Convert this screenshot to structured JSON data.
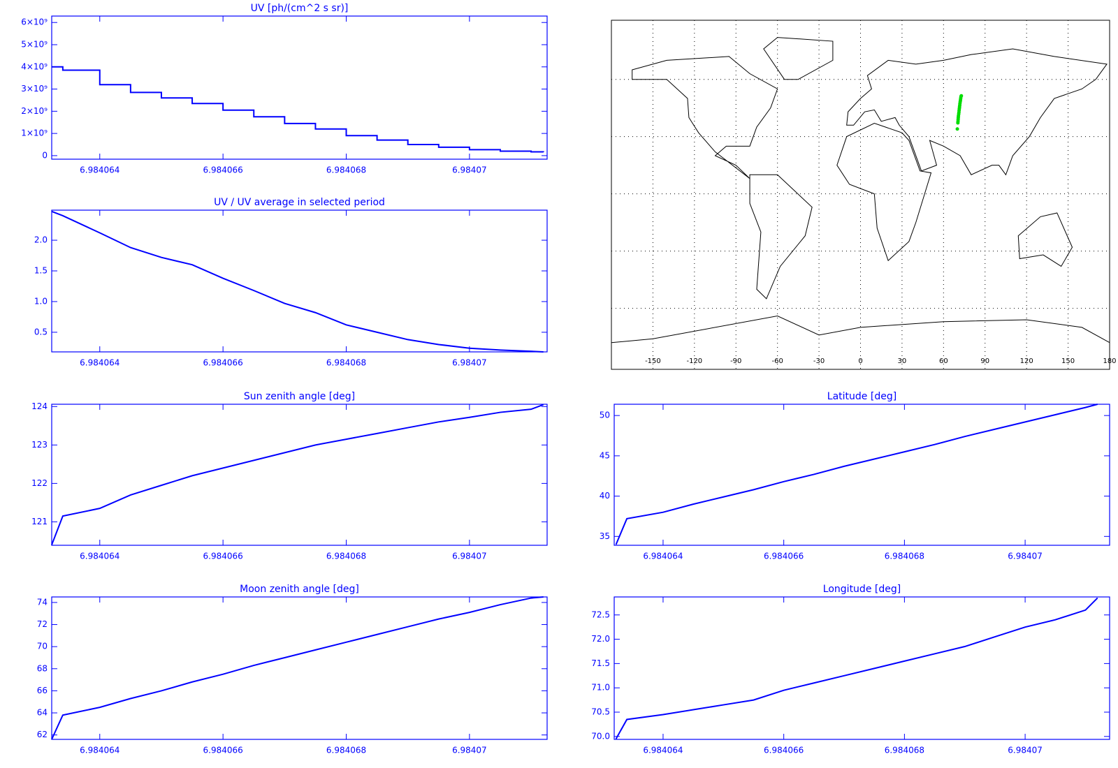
{
  "chart_data": [
    {
      "type": "line",
      "step": true,
      "title": "UV [ph/(cm^2 s sr)]",
      "color": "#0000ff",
      "x": [
        6.98406322,
        6.9840634,
        6.984064,
        6.9840645,
        6.984065,
        6.9840655,
        6.984066,
        6.9840665,
        6.984067,
        6.9840675,
        6.984068,
        6.9840685,
        6.984069,
        6.9840695,
        6.98407,
        6.9840705,
        6.984071,
        6.9840712
      ],
      "values": [
        4000000000,
        3850000000,
        3200000000,
        2850000000,
        2600000000,
        2350000000,
        2050000000,
        1750000000,
        1450000000,
        1200000000,
        900000000,
        700000000,
        500000000,
        380000000,
        270000000,
        200000000,
        170000000,
        160000000
      ],
      "xlim": [
        6.98406322,
        6.98407126
      ],
      "ylim": [
        -160000000,
        6290000000
      ],
      "xticks": [
        6.984064,
        6.984066,
        6.984068,
        6.98407
      ],
      "yticks": [
        0,
        {
          "value": 1000000000,
          "label": "1×10⁹"
        },
        {
          "value": 2000000000,
          "label": "2×10⁹"
        },
        {
          "value": 3000000000,
          "label": "3×10⁹"
        },
        {
          "value": 4000000000,
          "label": "4×10⁹"
        },
        {
          "value": 5000000000,
          "label": "5×10⁹"
        },
        {
          "value": 6000000000,
          "label": "6×10⁹"
        }
      ]
    },
    {
      "type": "line",
      "title": "UV / UV average in selected period",
      "color": "#0000ff",
      "x": [
        6.98406322,
        6.9840634,
        6.984064,
        6.9840645,
        6.984065,
        6.9840655,
        6.984066,
        6.9840665,
        6.984067,
        6.9840675,
        6.984068,
        6.9840685,
        6.984069,
        6.9840695,
        6.98407,
        6.9840705,
        6.984071,
        6.9840712
      ],
      "values": [
        2.47,
        2.4,
        2.12,
        1.88,
        1.72,
        1.6,
        1.38,
        1.18,
        0.97,
        0.82,
        0.62,
        0.5,
        0.38,
        0.3,
        0.24,
        0.21,
        0.19,
        0.18
      ],
      "xlim": [
        6.98406322,
        6.98407126
      ],
      "ylim": [
        0.18,
        2.49
      ],
      "xticks": [
        6.984064,
        6.984066,
        6.984068,
        6.98407
      ],
      "yticks": [
        0.5,
        {
          "value": 1,
          "label": "1.0"
        },
        1.5,
        {
          "value": 2,
          "label": "2.0"
        }
      ]
    },
    {
      "type": "map",
      "xlim": [
        -180,
        180
      ],
      "ylim": [
        -92,
        91
      ],
      "xticks": [
        -150,
        -120,
        -90,
        -60,
        -30,
        0,
        30,
        60,
        90,
        120,
        150,
        180
      ],
      "yticks": [
        -60,
        -30,
        0,
        30,
        60
      ],
      "grid": "dotted",
      "track_color": "#00dd00"
    },
    {
      "type": "line",
      "title": "Sun zenith angle [deg]",
      "color": "#0000ff",
      "x": [
        6.98406322,
        6.9840634,
        6.984064,
        6.9840645,
        6.984065,
        6.9840655,
        6.984066,
        6.9840665,
        6.984067,
        6.9840675,
        6.984068,
        6.9840685,
        6.984069,
        6.9840695,
        6.98407,
        6.9840705,
        6.984071,
        6.9840712
      ],
      "values": [
        120.4,
        121.15,
        121.35,
        121.7,
        121.95,
        122.2,
        122.4,
        122.6,
        122.8,
        123.0,
        123.15,
        123.3,
        123.45,
        123.6,
        123.72,
        123.85,
        123.93,
        124.05
      ],
      "xlim": [
        6.98406322,
        6.98407126
      ],
      "ylim": [
        120.39,
        124.06
      ],
      "xticks": [
        6.984064,
        6.984066,
        6.984068,
        6.98407
      ],
      "yticks": [
        121,
        122,
        123,
        124
      ]
    },
    {
      "type": "line",
      "title": "Latitude [deg]",
      "color": "#0000ff",
      "x": [
        6.98406322,
        6.9840634,
        6.984064,
        6.9840645,
        6.984065,
        6.9840655,
        6.984066,
        6.9840665,
        6.984067,
        6.9840675,
        6.984068,
        6.9840685,
        6.984069,
        6.9840695,
        6.98407,
        6.9840705,
        6.984071,
        6.9840712
      ],
      "values": [
        34,
        37.2,
        38.0,
        39.0,
        39.9,
        40.8,
        41.8,
        42.7,
        43.7,
        44.6,
        45.5,
        46.4,
        47.4,
        48.3,
        49.2,
        50.1,
        51.0,
        51.4
      ],
      "xlim": [
        6.98406319,
        6.9840714
      ],
      "ylim": [
        33.9,
        51.4
      ],
      "xticks": [
        6.984064,
        6.984066,
        6.984068,
        6.98407
      ],
      "yticks": [
        35,
        40,
        45,
        50
      ]
    },
    {
      "type": "line",
      "title": "Moon zenith angle [deg]",
      "color": "#0000ff",
      "x": [
        6.98406322,
        6.9840634,
        6.984064,
        6.9840645,
        6.984065,
        6.9840655,
        6.984066,
        6.9840665,
        6.984067,
        6.9840675,
        6.984068,
        6.9840685,
        6.984069,
        6.9840695,
        6.98407,
        6.9840705,
        6.984071,
        6.9840712
      ],
      "values": [
        61.6,
        63.8,
        64.5,
        65.3,
        66.0,
        66.8,
        67.5,
        68.3,
        69.0,
        69.7,
        70.4,
        71.1,
        71.8,
        72.5,
        73.1,
        73.8,
        74.4,
        74.5
      ],
      "xlim": [
        6.98406322,
        6.98407126
      ],
      "ylim": [
        61.6,
        74.5
      ],
      "xticks": [
        6.984064,
        6.984066,
        6.984068,
        6.98407
      ],
      "yticks": [
        62,
        64,
        66,
        68,
        70,
        72,
        74
      ]
    },
    {
      "type": "line",
      "title": "Longitude [deg]",
      "color": "#0000ff",
      "x": [
        6.98406322,
        6.9840634,
        6.984064,
        6.9840645,
        6.984065,
        6.9840655,
        6.984066,
        6.9840665,
        6.984067,
        6.9840675,
        6.984068,
        6.9840685,
        6.984069,
        6.9840695,
        6.98407,
        6.9840705,
        6.984071,
        6.9840712
      ],
      "values": [
        69.95,
        70.35,
        70.45,
        70.55,
        70.65,
        70.75,
        70.95,
        71.1,
        71.25,
        71.4,
        71.55,
        71.7,
        71.85,
        72.05,
        72.25,
        72.4,
        72.6,
        72.85
      ],
      "xlim": [
        6.98406319,
        6.9840714
      ],
      "ylim": [
        69.94,
        72.87
      ],
      "xticks": [
        6.984064,
        6.984066,
        6.984068,
        6.98407
      ],
      "yticks": [
        {
          "value": 70,
          "label": "70.0"
        },
        70.5,
        {
          "value": 71,
          "label": "71.0"
        },
        71.5,
        {
          "value": 72,
          "label": "72.0"
        },
        72.5
      ]
    }
  ]
}
